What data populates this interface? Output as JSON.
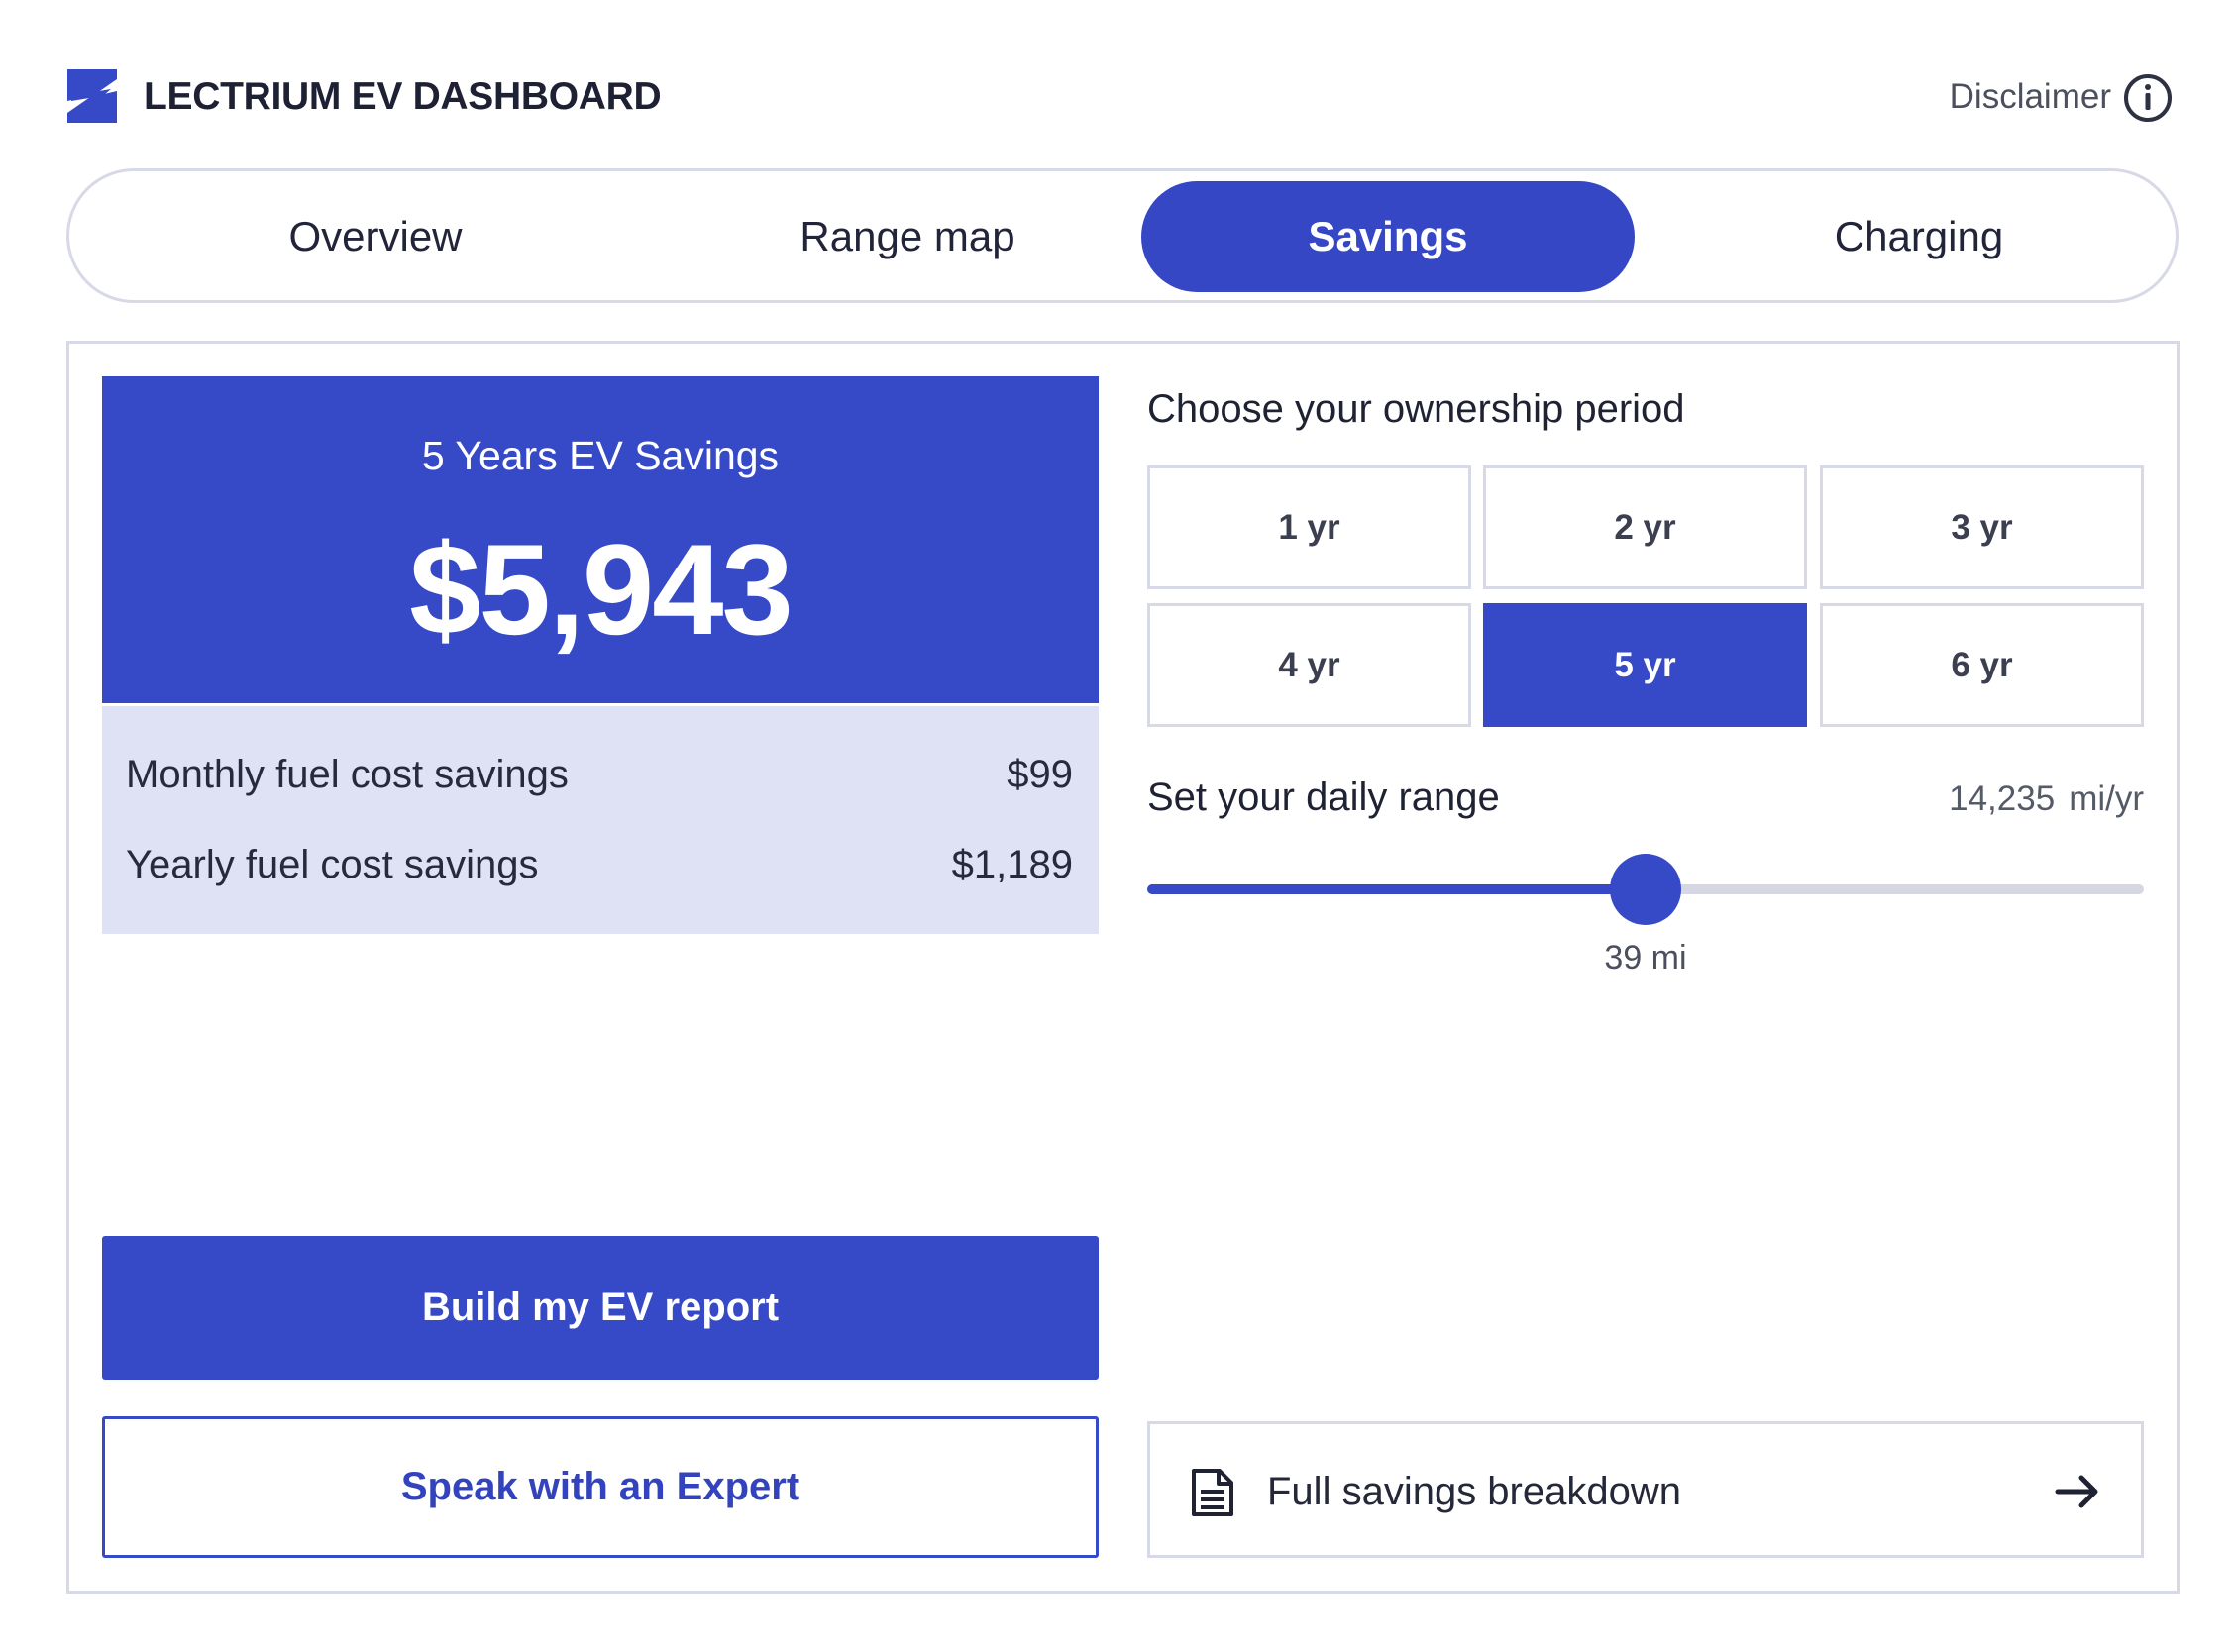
{
  "header": {
    "brand": "LECTRIUM EV DASHBOARD",
    "disclaimer_label": "Disclaimer",
    "logo_icon": "lightning-bolt-icon",
    "info_icon": "info-circle-icon"
  },
  "tabs": [
    {
      "label": "Overview",
      "active": false
    },
    {
      "label": "Range map",
      "active": false
    },
    {
      "label": "Savings",
      "active": true
    },
    {
      "label": "Charging",
      "active": false
    }
  ],
  "savings": {
    "title": "5 Years EV Savings",
    "value": "$5,943",
    "rows": [
      {
        "label": "Monthly fuel cost savings",
        "value": "$99"
      },
      {
        "label": "Yearly fuel cost savings",
        "value": "$1,189"
      }
    ]
  },
  "actions": {
    "primary_label": "Build my EV report",
    "secondary_label": "Speak with an Expert"
  },
  "ownership": {
    "title": "Choose your ownership period",
    "options": [
      {
        "label": "1 yr",
        "selected": false
      },
      {
        "label": "2 yr",
        "selected": false
      },
      {
        "label": "3 yr",
        "selected": false
      },
      {
        "label": "4 yr",
        "selected": false
      },
      {
        "label": "5 yr",
        "selected": true
      },
      {
        "label": "6 yr",
        "selected": false
      }
    ]
  },
  "range": {
    "title": "Set your daily range",
    "annual_value": "14,235",
    "annual_unit": "mi/yr",
    "slider_value_label": "39 mi",
    "slider_fraction": 0.5
  },
  "breakdown": {
    "label": "Full savings breakdown",
    "icon": "document-icon",
    "arrow_icon": "arrow-right-icon"
  },
  "colors": {
    "accent": "#3649c6",
    "rows_background": "#dfe2f4",
    "border": "#d7d9e6"
  }
}
